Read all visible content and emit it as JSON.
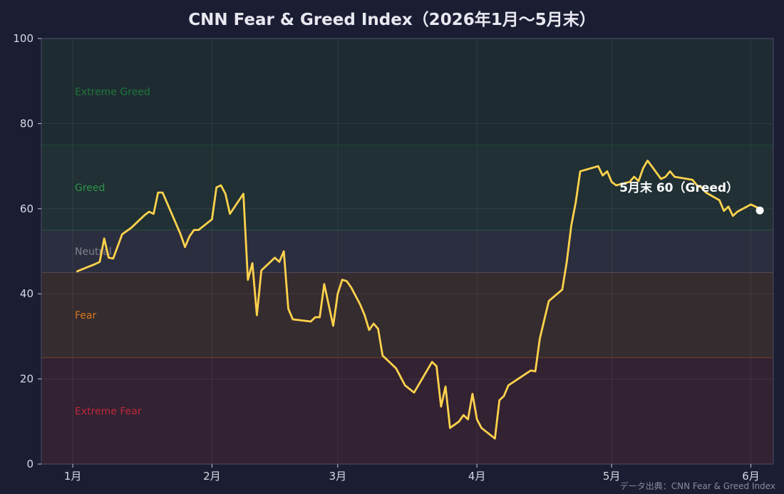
{
  "chart_data": {
    "type": "line",
    "title": "CNN Fear & Greed Index（2026年1月〜5月末）",
    "source_note": "データ出典：CNN Fear & Greed Index",
    "ylim": [
      0,
      100
    ],
    "yticks": [
      0,
      20,
      40,
      60,
      80,
      100
    ],
    "xlim": [
      "2025-12-25",
      "2026-06-06"
    ],
    "xticks": [
      {
        "date": "2026-01-01",
        "label": "1月"
      },
      {
        "date": "2026-02-01",
        "label": "2月"
      },
      {
        "date": "2026-03-01",
        "label": "3月"
      },
      {
        "date": "2026-04-01",
        "label": "4月"
      },
      {
        "date": "2026-05-01",
        "label": "5月"
      },
      {
        "date": "2026-06-01",
        "label": "6月"
      }
    ],
    "grid": true,
    "zones": [
      {
        "label": "Extreme Fear",
        "from": 0,
        "to": 25,
        "color": "#c8283c",
        "label_value": 12.5
      },
      {
        "label": "Fear",
        "from": 25,
        "to": 45,
        "color": "#e07a1f",
        "label_value": 35
      },
      {
        "label": "Neutral",
        "from": 45,
        "to": 55,
        "color": "#8a8a9a",
        "label_value": 50
      },
      {
        "label": "Greed",
        "from": 55,
        "to": 75,
        "color": "#2f9a4a",
        "label_value": 65
      },
      {
        "label": "Extreme Greed",
        "from": 75,
        "to": 100,
        "color": "#1f7a3a",
        "label_value": 87.5
      }
    ],
    "series": [
      {
        "color": "#ffd24d",
        "points": [
          [
            "2026-01-02",
            45.3
          ],
          [
            "2026-01-06",
            47
          ],
          [
            "2026-01-07",
            47.5
          ],
          [
            "2026-01-08",
            53
          ],
          [
            "2026-01-09",
            48.5
          ],
          [
            "2026-01-10",
            48.3
          ],
          [
            "2026-01-12",
            54
          ],
          [
            "2026-01-14",
            55.5
          ],
          [
            "2026-01-15",
            56.5
          ],
          [
            "2026-01-16",
            57.5
          ],
          [
            "2026-01-17",
            58.5
          ],
          [
            "2026-01-18",
            59.3
          ],
          [
            "2026-01-19",
            58.8
          ],
          [
            "2026-01-20",
            63.8
          ],
          [
            "2026-01-21",
            63.8
          ],
          [
            "2026-01-25",
            54
          ],
          [
            "2026-01-26",
            51
          ],
          [
            "2026-01-27",
            53.5
          ],
          [
            "2026-01-28",
            55
          ],
          [
            "2026-01-29",
            55
          ],
          [
            "2026-02-01",
            57.5
          ],
          [
            "2026-02-02",
            65
          ],
          [
            "2026-02-03",
            65.5
          ],
          [
            "2026-02-04",
            63.5
          ],
          [
            "2026-02-05",
            58.8
          ],
          [
            "2026-02-08",
            63.5
          ],
          [
            "2026-02-09",
            43.3
          ],
          [
            "2026-02-10",
            47.2
          ],
          [
            "2026-02-11",
            35
          ],
          [
            "2026-02-12",
            45.5
          ],
          [
            "2026-02-15",
            48.5
          ],
          [
            "2026-02-16",
            47.5
          ],
          [
            "2026-02-17",
            50
          ],
          [
            "2026-02-18",
            36.5
          ],
          [
            "2026-02-19",
            34
          ],
          [
            "2026-02-23",
            33.5
          ],
          [
            "2026-02-24",
            34.5
          ],
          [
            "2026-02-25",
            34.5
          ],
          [
            "2026-02-26",
            42.3
          ],
          [
            "2026-02-28",
            32.5
          ],
          [
            "2026-03-01",
            40
          ],
          [
            "2026-03-02",
            43.3
          ],
          [
            "2026-03-03",
            43
          ],
          [
            "2026-03-04",
            41.5
          ],
          [
            "2026-03-06",
            37.5
          ],
          [
            "2026-03-07",
            35
          ],
          [
            "2026-03-08",
            31.5
          ],
          [
            "2026-03-09",
            33
          ],
          [
            "2026-03-10",
            31.8
          ],
          [
            "2026-03-11",
            25.5
          ],
          [
            "2026-03-14",
            22.5
          ],
          [
            "2026-03-16",
            18.5
          ],
          [
            "2026-03-18",
            16.8
          ],
          [
            "2026-03-22",
            24
          ],
          [
            "2026-03-23",
            23
          ],
          [
            "2026-03-24",
            13.5
          ],
          [
            "2026-03-25",
            18.2
          ],
          [
            "2026-03-26",
            8.5
          ],
          [
            "2026-03-28",
            10
          ],
          [
            "2026-03-29",
            11.5
          ],
          [
            "2026-03-30",
            10.5
          ],
          [
            "2026-03-31",
            16.5
          ],
          [
            "2026-04-01",
            10.5
          ],
          [
            "2026-04-02",
            8.5
          ],
          [
            "2026-04-05",
            6
          ],
          [
            "2026-04-06",
            15
          ],
          [
            "2026-04-07",
            16
          ],
          [
            "2026-04-08",
            18.5
          ],
          [
            "2026-04-13",
            22
          ],
          [
            "2026-04-14",
            21.8
          ],
          [
            "2026-04-15",
            29.5
          ],
          [
            "2026-04-17",
            38.3
          ],
          [
            "2026-04-20",
            41
          ],
          [
            "2026-04-21",
            47.5
          ],
          [
            "2026-04-22",
            56
          ],
          [
            "2026-04-23",
            61.5
          ],
          [
            "2026-04-24",
            68.8
          ],
          [
            "2026-04-28",
            70
          ],
          [
            "2026-04-29",
            67.8
          ],
          [
            "2026-04-30",
            68.8
          ],
          [
            "2026-05-01",
            66.3
          ],
          [
            "2026-05-02",
            65.5
          ],
          [
            "2026-05-05",
            66.3
          ],
          [
            "2026-05-06",
            67.5
          ],
          [
            "2026-05-07",
            66.5
          ],
          [
            "2026-05-08",
            69.5
          ],
          [
            "2026-05-09",
            71.3
          ],
          [
            "2026-05-12",
            67
          ],
          [
            "2026-05-13",
            67.5
          ],
          [
            "2026-05-14",
            68.8
          ],
          [
            "2026-05-15",
            67.5
          ],
          [
            "2026-05-19",
            66.8
          ],
          [
            "2026-05-20",
            65.5
          ],
          [
            "2026-05-21",
            65
          ],
          [
            "2026-05-22",
            63.8
          ],
          [
            "2026-05-25",
            62
          ],
          [
            "2026-05-26",
            59.5
          ],
          [
            "2026-05-27",
            60.5
          ],
          [
            "2026-05-28",
            58.3
          ],
          [
            "2026-05-29",
            59.3
          ],
          [
            "2026-06-01",
            61
          ],
          [
            "2026-06-03",
            60
          ]
        ]
      }
    ],
    "annotation": {
      "text": "5月末 60（Greed）",
      "date": "2026-06-03",
      "value": 59.6
    }
  }
}
